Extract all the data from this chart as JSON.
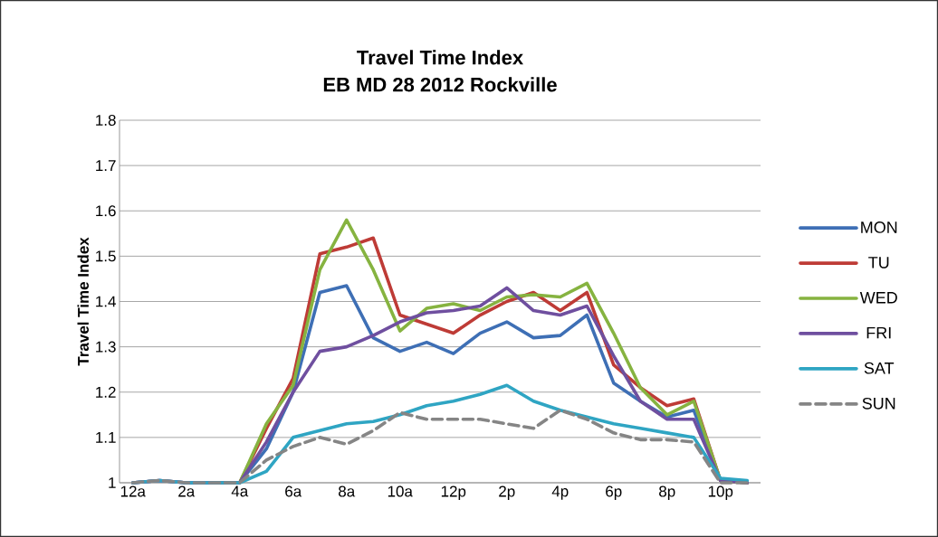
{
  "chart_data": {
    "type": "line",
    "title": "Travel Time Index",
    "subtitle": "EB MD 28 2012 Rockville",
    "ylabel": "Travel Time Index",
    "categories": [
      "12a",
      null,
      "2a",
      null,
      "4a",
      null,
      "6a",
      null,
      "8a",
      null,
      "10a",
      null,
      "12p",
      null,
      "2p",
      null,
      "4p",
      null,
      "6p",
      null,
      "8p",
      null,
      "10p",
      null
    ],
    "ylim": [
      1,
      1.8
    ],
    "yticks": [
      1,
      1.1,
      1.2,
      1.3,
      1.4,
      1.5,
      1.6,
      1.7,
      1.8
    ],
    "grid": "y",
    "legend": "right",
    "series": [
      {
        "name": "MON",
        "color": "#3e6fb5",
        "values": [
          1.0,
          1.005,
          1.0,
          1.0,
          1.0,
          1.075,
          1.2,
          1.42,
          1.435,
          1.32,
          1.29,
          1.31,
          1.285,
          1.33,
          1.355,
          1.32,
          1.325,
          1.37,
          1.22,
          1.18,
          1.145,
          1.16,
          1.005,
          1.0
        ]
      },
      {
        "name": "TU",
        "color": "#be3b36",
        "values": [
          null,
          null,
          null,
          1.0,
          1.0,
          1.12,
          1.23,
          1.505,
          1.52,
          1.54,
          1.37,
          1.35,
          1.33,
          1.37,
          1.4,
          1.42,
          1.38,
          1.42,
          1.26,
          1.21,
          1.17,
          1.185,
          1.005,
          1.0
        ]
      },
      {
        "name": "WED",
        "color": "#86b340",
        "values": [
          null,
          null,
          null,
          1.0,
          1.0,
          1.13,
          1.215,
          1.47,
          1.58,
          1.47,
          1.335,
          1.385,
          1.395,
          1.38,
          1.41,
          1.415,
          1.41,
          1.44,
          1.33,
          1.21,
          1.15,
          1.18,
          1.005,
          1.0
        ]
      },
      {
        "name": "FRI",
        "color": "#6f4f9f",
        "values": [
          1.0,
          1.005,
          1.0,
          1.0,
          1.0,
          1.09,
          1.2,
          1.29,
          1.3,
          1.325,
          1.355,
          1.375,
          1.38,
          1.39,
          1.43,
          1.38,
          1.37,
          1.39,
          1.28,
          1.18,
          1.14,
          1.14,
          1.005,
          1.0
        ]
      },
      {
        "name": "SAT",
        "color": "#2fa5c3",
        "values": [
          1.0,
          1.005,
          1.0,
          1.0,
          1.0,
          1.025,
          1.1,
          1.115,
          1.13,
          1.135,
          1.15,
          1.17,
          1.18,
          1.195,
          1.215,
          1.18,
          1.16,
          1.145,
          1.13,
          1.12,
          1.11,
          1.1,
          1.01,
          1.005
        ]
      },
      {
        "name": "SUN",
        "color": "#858585",
        "line_style": "dashed",
        "values": [
          1.0,
          1.005,
          1.0,
          1.0,
          1.0,
          1.05,
          1.08,
          1.1,
          1.085,
          1.115,
          1.155,
          1.14,
          1.14,
          1.14,
          1.13,
          1.12,
          1.16,
          1.14,
          1.11,
          1.095,
          1.095,
          1.09,
          1.0,
          1.0
        ]
      }
    ]
  }
}
